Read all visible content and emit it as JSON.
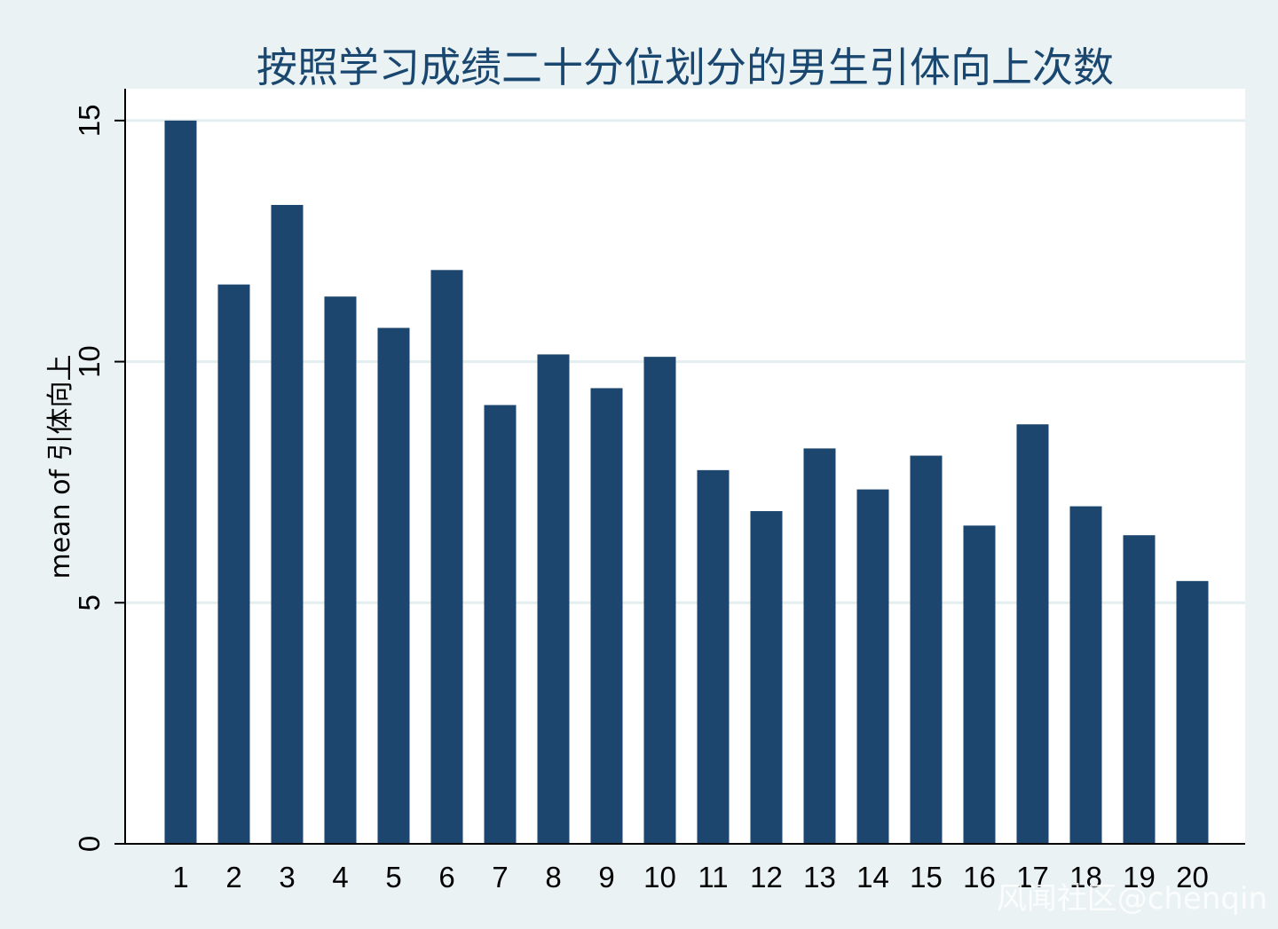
{
  "chart_data": {
    "type": "bar",
    "title": "按照学习成绩二十分位划分的男生引体向上次数",
    "xlabel": "",
    "ylabel": "mean of 引体向上",
    "categories": [
      "1",
      "2",
      "3",
      "4",
      "5",
      "6",
      "7",
      "8",
      "9",
      "10",
      "11",
      "12",
      "13",
      "14",
      "15",
      "16",
      "17",
      "18",
      "19",
      "20"
    ],
    "values": [
      15.0,
      11.6,
      13.25,
      11.35,
      10.7,
      11.9,
      9.1,
      10.15,
      9.45,
      10.1,
      7.75,
      6.9,
      8.2,
      7.35,
      8.05,
      6.6,
      8.7,
      7.0,
      6.4,
      5.45
    ],
    "ylim": [
      0,
      15.66
    ],
    "yticks": [
      0,
      5,
      10,
      15
    ],
    "grid": true,
    "legend": "none",
    "colors": {
      "bar": "#1c466e",
      "background": "#eaf2f3",
      "plot_background": "#ffffff",
      "gridline": "#e3eef0",
      "title": "#1a476f"
    }
  },
  "watermark": "风闻社区@chenqin"
}
